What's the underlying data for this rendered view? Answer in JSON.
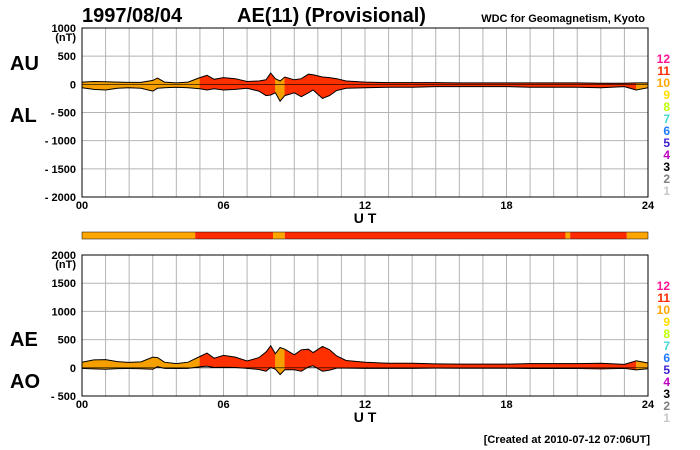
{
  "header": {
    "date": "1997/08/04",
    "title": "AE(11) (Provisional)",
    "org": "WDC for Geomagnetism, Kyoto"
  },
  "footer": {
    "created": "[Created at 2010-07-12 07:06UT]"
  },
  "colors": {
    "orange": "#f5a000",
    "red": "#ff3000",
    "grid": "#b4b4b4",
    "legend": {
      "12": "#ff1493",
      "11": "#ff2a00",
      "10": "#ffa500",
      "9": "#ffdd00",
      "8": "#bfff00",
      "7": "#40d8d0",
      "6": "#1e7bff",
      "5": "#3b1fcf",
      "4": "#c000c0",
      "3": "#000000",
      "2": "#808080",
      "1": "#c8c8c8"
    }
  },
  "chart_data": [
    {
      "type": "area",
      "name": "AU/AL",
      "side_labels": [
        "AU",
        "AL"
      ],
      "y_unit": "(nT)",
      "ylim": [
        -2000,
        1000
      ],
      "yticks": [
        "1000",
        "500",
        "0",
        "- 500",
        "- 1000",
        "- 1500",
        "- 2000"
      ],
      "ytick_values": [
        1000,
        500,
        0,
        -500,
        -1000,
        -1500,
        -2000
      ],
      "xlim": [
        0,
        24
      ],
      "xticks": [
        "00",
        "06",
        "12",
        "18",
        "24"
      ],
      "xlabel": "U T",
      "legend": [
        "12",
        "11",
        "10",
        "9",
        "8",
        "7",
        "6",
        "5",
        "4",
        "3",
        "2",
        "1"
      ],
      "x": [
        0,
        0.5,
        1,
        1.5,
        2,
        2.5,
        3,
        3.2,
        3.5,
        4,
        4.5,
        5,
        5.3,
        5.6,
        6,
        6.5,
        7,
        7.5,
        7.8,
        8,
        8.2,
        8.4,
        8.6,
        9,
        9.3,
        9.6,
        9.8,
        10.2,
        10.5,
        10.8,
        11.2,
        12,
        13,
        14,
        15,
        16,
        17,
        18,
        19,
        20,
        21,
        22,
        23,
        23.5,
        24
      ],
      "series": [
        {
          "name": "AU",
          "values": [
            40,
            50,
            45,
            40,
            35,
            35,
            70,
            110,
            40,
            25,
            40,
            120,
            160,
            90,
            120,
            100,
            50,
            60,
            80,
            200,
            100,
            60,
            130,
            80,
            100,
            180,
            170,
            130,
            120,
            100,
            60,
            40,
            30,
            30,
            30,
            25,
            25,
            25,
            25,
            25,
            25,
            20,
            20,
            25,
            25
          ]
        },
        {
          "name": "AL",
          "values": [
            -60,
            -90,
            -100,
            -70,
            -60,
            -70,
            -120,
            -70,
            -60,
            -50,
            -60,
            -80,
            -100,
            -80,
            -100,
            -90,
            -70,
            -120,
            -200,
            -190,
            -150,
            -300,
            -200,
            -150,
            -220,
            -150,
            -100,
            -250,
            -200,
            -110,
            -70,
            -60,
            -50,
            -50,
            -40,
            -40,
            -40,
            -40,
            -50,
            -50,
            -50,
            -60,
            -40,
            -100,
            -60
          ]
        }
      ]
    },
    {
      "type": "area",
      "name": "AE/AO",
      "side_labels": [
        "AE",
        "AO"
      ],
      "y_unit": "(nT)",
      "ylim": [
        -500,
        2000
      ],
      "yticks": [
        "2000",
        "1500",
        "1000",
        "500",
        "0",
        "- 500"
      ],
      "ytick_values": [
        2000,
        1500,
        1000,
        500,
        0,
        -500
      ],
      "xlim": [
        0,
        24
      ],
      "xticks": [
        "00",
        "06",
        "12",
        "18",
        "24"
      ],
      "xlabel": "U T",
      "legend": [
        "12",
        "11",
        "10",
        "9",
        "8",
        "7",
        "6",
        "5",
        "4",
        "3",
        "2",
        "1"
      ],
      "x": [
        0,
        0.5,
        1,
        1.5,
        2,
        2.5,
        3,
        3.2,
        3.5,
        4,
        4.5,
        5,
        5.3,
        5.6,
        6,
        6.5,
        7,
        7.5,
        7.8,
        8,
        8.2,
        8.4,
        8.6,
        9,
        9.3,
        9.6,
        9.8,
        10.2,
        10.5,
        10.8,
        11.2,
        12,
        13,
        14,
        15,
        16,
        17,
        18,
        19,
        20,
        21,
        22,
        23,
        23.5,
        24
      ],
      "series": [
        {
          "name": "AE",
          "values": [
            100,
            140,
            145,
            110,
            95,
            105,
            190,
            180,
            100,
            75,
            100,
            200,
            260,
            170,
            220,
            190,
            120,
            180,
            280,
            390,
            250,
            360,
            330,
            230,
            320,
            330,
            270,
            380,
            320,
            210,
            130,
            100,
            80,
            80,
            70,
            65,
            65,
            65,
            75,
            75,
            75,
            80,
            60,
            125,
            85
          ]
        },
        {
          "name": "AO",
          "values": [
            -10,
            -20,
            -27,
            -15,
            -12,
            -17,
            -25,
            20,
            -10,
            -12,
            -10,
            20,
            30,
            5,
            10,
            5,
            -10,
            -30,
            -60,
            5,
            -25,
            -120,
            -35,
            -35,
            -60,
            15,
            35,
            -60,
            -40,
            -5,
            -5,
            -10,
            -10,
            -10,
            -5,
            -7,
            -7,
            -7,
            -12,
            -12,
            -12,
            -20,
            -10,
            -37,
            -17
          ]
        }
      ]
    }
  ],
  "status_bar": {
    "segments": [
      {
        "start": 0,
        "end": 3.2,
        "level": "10"
      },
      {
        "start": 3.2,
        "end": 4.8,
        "level": "10"
      },
      {
        "start": 4.8,
        "end": 8.1,
        "level": "11"
      },
      {
        "start": 8.1,
        "end": 8.6,
        "level": "10"
      },
      {
        "start": 8.6,
        "end": 20.5,
        "level": "11"
      },
      {
        "start": 20.5,
        "end": 20.7,
        "level": "10"
      },
      {
        "start": 20.7,
        "end": 23.1,
        "level": "11"
      },
      {
        "start": 23.1,
        "end": 24,
        "level": "10"
      }
    ]
  },
  "orange_intervals": [
    [
      0,
      4.8
    ],
    [
      8.1,
      8.6
    ],
    [
      23.1,
      24
    ]
  ]
}
